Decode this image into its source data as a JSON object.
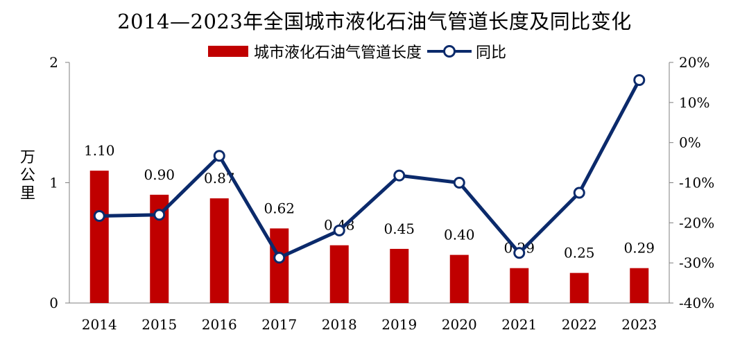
{
  "chart_data": {
    "type": "bar+line",
    "title": "2014—2023年全国城市液化石油气管道长度及同比变化",
    "ylabel": "万公里",
    "ylabel_right": "",
    "categories": [
      "2014",
      "2015",
      "2016",
      "2017",
      "2018",
      "2019",
      "2020",
      "2021",
      "2022",
      "2023"
    ],
    "series": [
      {
        "name": "城市液化石油气管道长度",
        "type": "bar",
        "axis": "left",
        "color": "#C00000",
        "values": [
          1.1,
          0.9,
          0.87,
          0.62,
          0.48,
          0.45,
          0.4,
          0.29,
          0.25,
          0.29
        ],
        "labels": [
          "1.10",
          "0.90",
          "0.87",
          "0.62",
          "0.48",
          "0.45",
          "0.40",
          "0.29",
          "0.25",
          "0.29"
        ]
      },
      {
        "name": "同比",
        "type": "line",
        "axis": "right",
        "color": "#0B2A6B",
        "values": [
          -18.3,
          -18.0,
          -3.3,
          -28.7,
          -21.9,
          -8.2,
          -10.0,
          -27.5,
          -12.5,
          15.6
        ]
      }
    ],
    "ylim": [
      0,
      2
    ],
    "yticks": [
      "0",
      "1",
      "2"
    ],
    "ylim_right": [
      -40,
      20
    ],
    "yticks_right": [
      "-40%",
      "-30%",
      "-20%",
      "-10%",
      "0%",
      "10%",
      "20%"
    ],
    "legend_position": "top",
    "grid": false
  }
}
